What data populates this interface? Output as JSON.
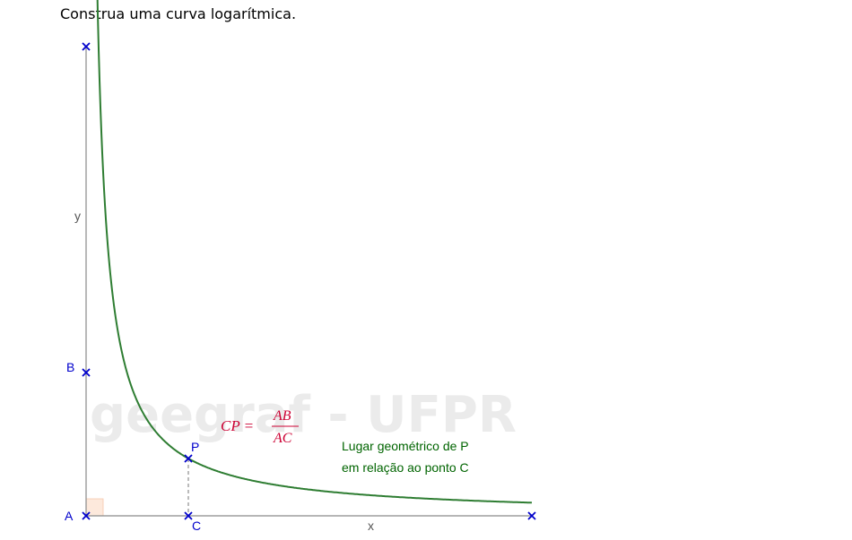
{
  "instruction": "Construa uma curva logarítmica.",
  "watermark": "geegraf - UFPR",
  "axes": {
    "x_label": "x",
    "y_label": "y"
  },
  "points": {
    "A": "A",
    "B": "B",
    "C": "C",
    "P": "P"
  },
  "formula": {
    "lhs": "CP =",
    "numerator": "AB",
    "denominator": "AC"
  },
  "locus_text": {
    "line1": "Lugar geométrico de P",
    "line2": "em relação ao ponto C"
  },
  "colors": {
    "curve": "#2e7d32",
    "points": "#0000cc",
    "axis": "#808080",
    "formula": "#cc0033",
    "locus_text": "#006400",
    "watermark": "#e8e8e8",
    "right_angle_fill": "#fde9dc"
  }
}
